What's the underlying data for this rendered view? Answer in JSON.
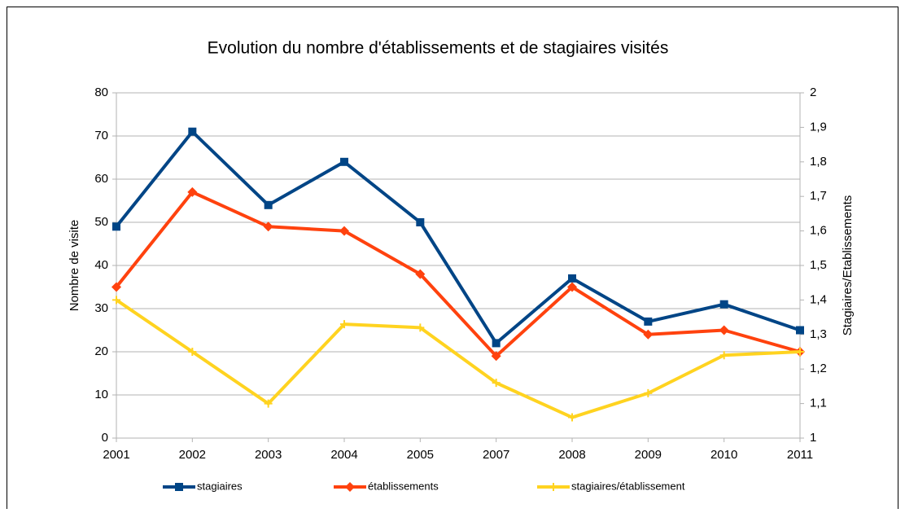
{
  "chart_data": {
    "type": "line",
    "title": "Evolution du nombre d'établissements et de stagiaires visités",
    "y_label": "Nombre de visite",
    "y2_label": "Stagiaires/Etablissements",
    "categories": [
      "2001",
      "2002",
      "2003",
      "2004",
      "2005",
      "2007",
      "2008",
      "2009",
      "2010",
      "2011"
    ],
    "series": [
      {
        "name": "stagiaires",
        "color": "#004586",
        "marker": "square",
        "values": [
          49,
          71,
          54,
          64,
          50,
          22,
          37,
          27,
          31,
          25
        ]
      },
      {
        "name": "établissements",
        "color": "#ff420e",
        "marker": "diamond",
        "values": [
          35,
          57,
          49,
          48,
          38,
          19,
          35,
          24,
          25,
          20
        ]
      },
      {
        "name": "stagiaires/établissement",
        "color": "#ffd320",
        "marker": "cross",
        "axis": "y2",
        "values": [
          1.4,
          1.25,
          1.1,
          1.33,
          1.32,
          1.16,
          1.06,
          1.13,
          1.24,
          1.25
        ]
      }
    ],
    "ylim": [
      0,
      80
    ],
    "yticks": [
      0,
      10,
      20,
      30,
      40,
      50,
      60,
      70,
      80
    ],
    "y2lim": [
      1,
      2
    ],
    "y2ticks": [
      1,
      {
        "value": 1.1,
        "label": "1,1"
      },
      {
        "value": 1.2,
        "label": "1,2"
      },
      {
        "value": 1.3,
        "label": "1,3"
      },
      {
        "value": 1.4,
        "label": "1,4"
      },
      {
        "value": 1.5,
        "label": "1,5"
      },
      {
        "value": 1.6,
        "label": "1,6"
      },
      {
        "value": 1.7,
        "label": "1,7"
      },
      {
        "value": 1.8,
        "label": "1,8"
      },
      {
        "value": 1.9,
        "label": "1,9"
      },
      2
    ],
    "grid": true,
    "legend": "bottom"
  }
}
